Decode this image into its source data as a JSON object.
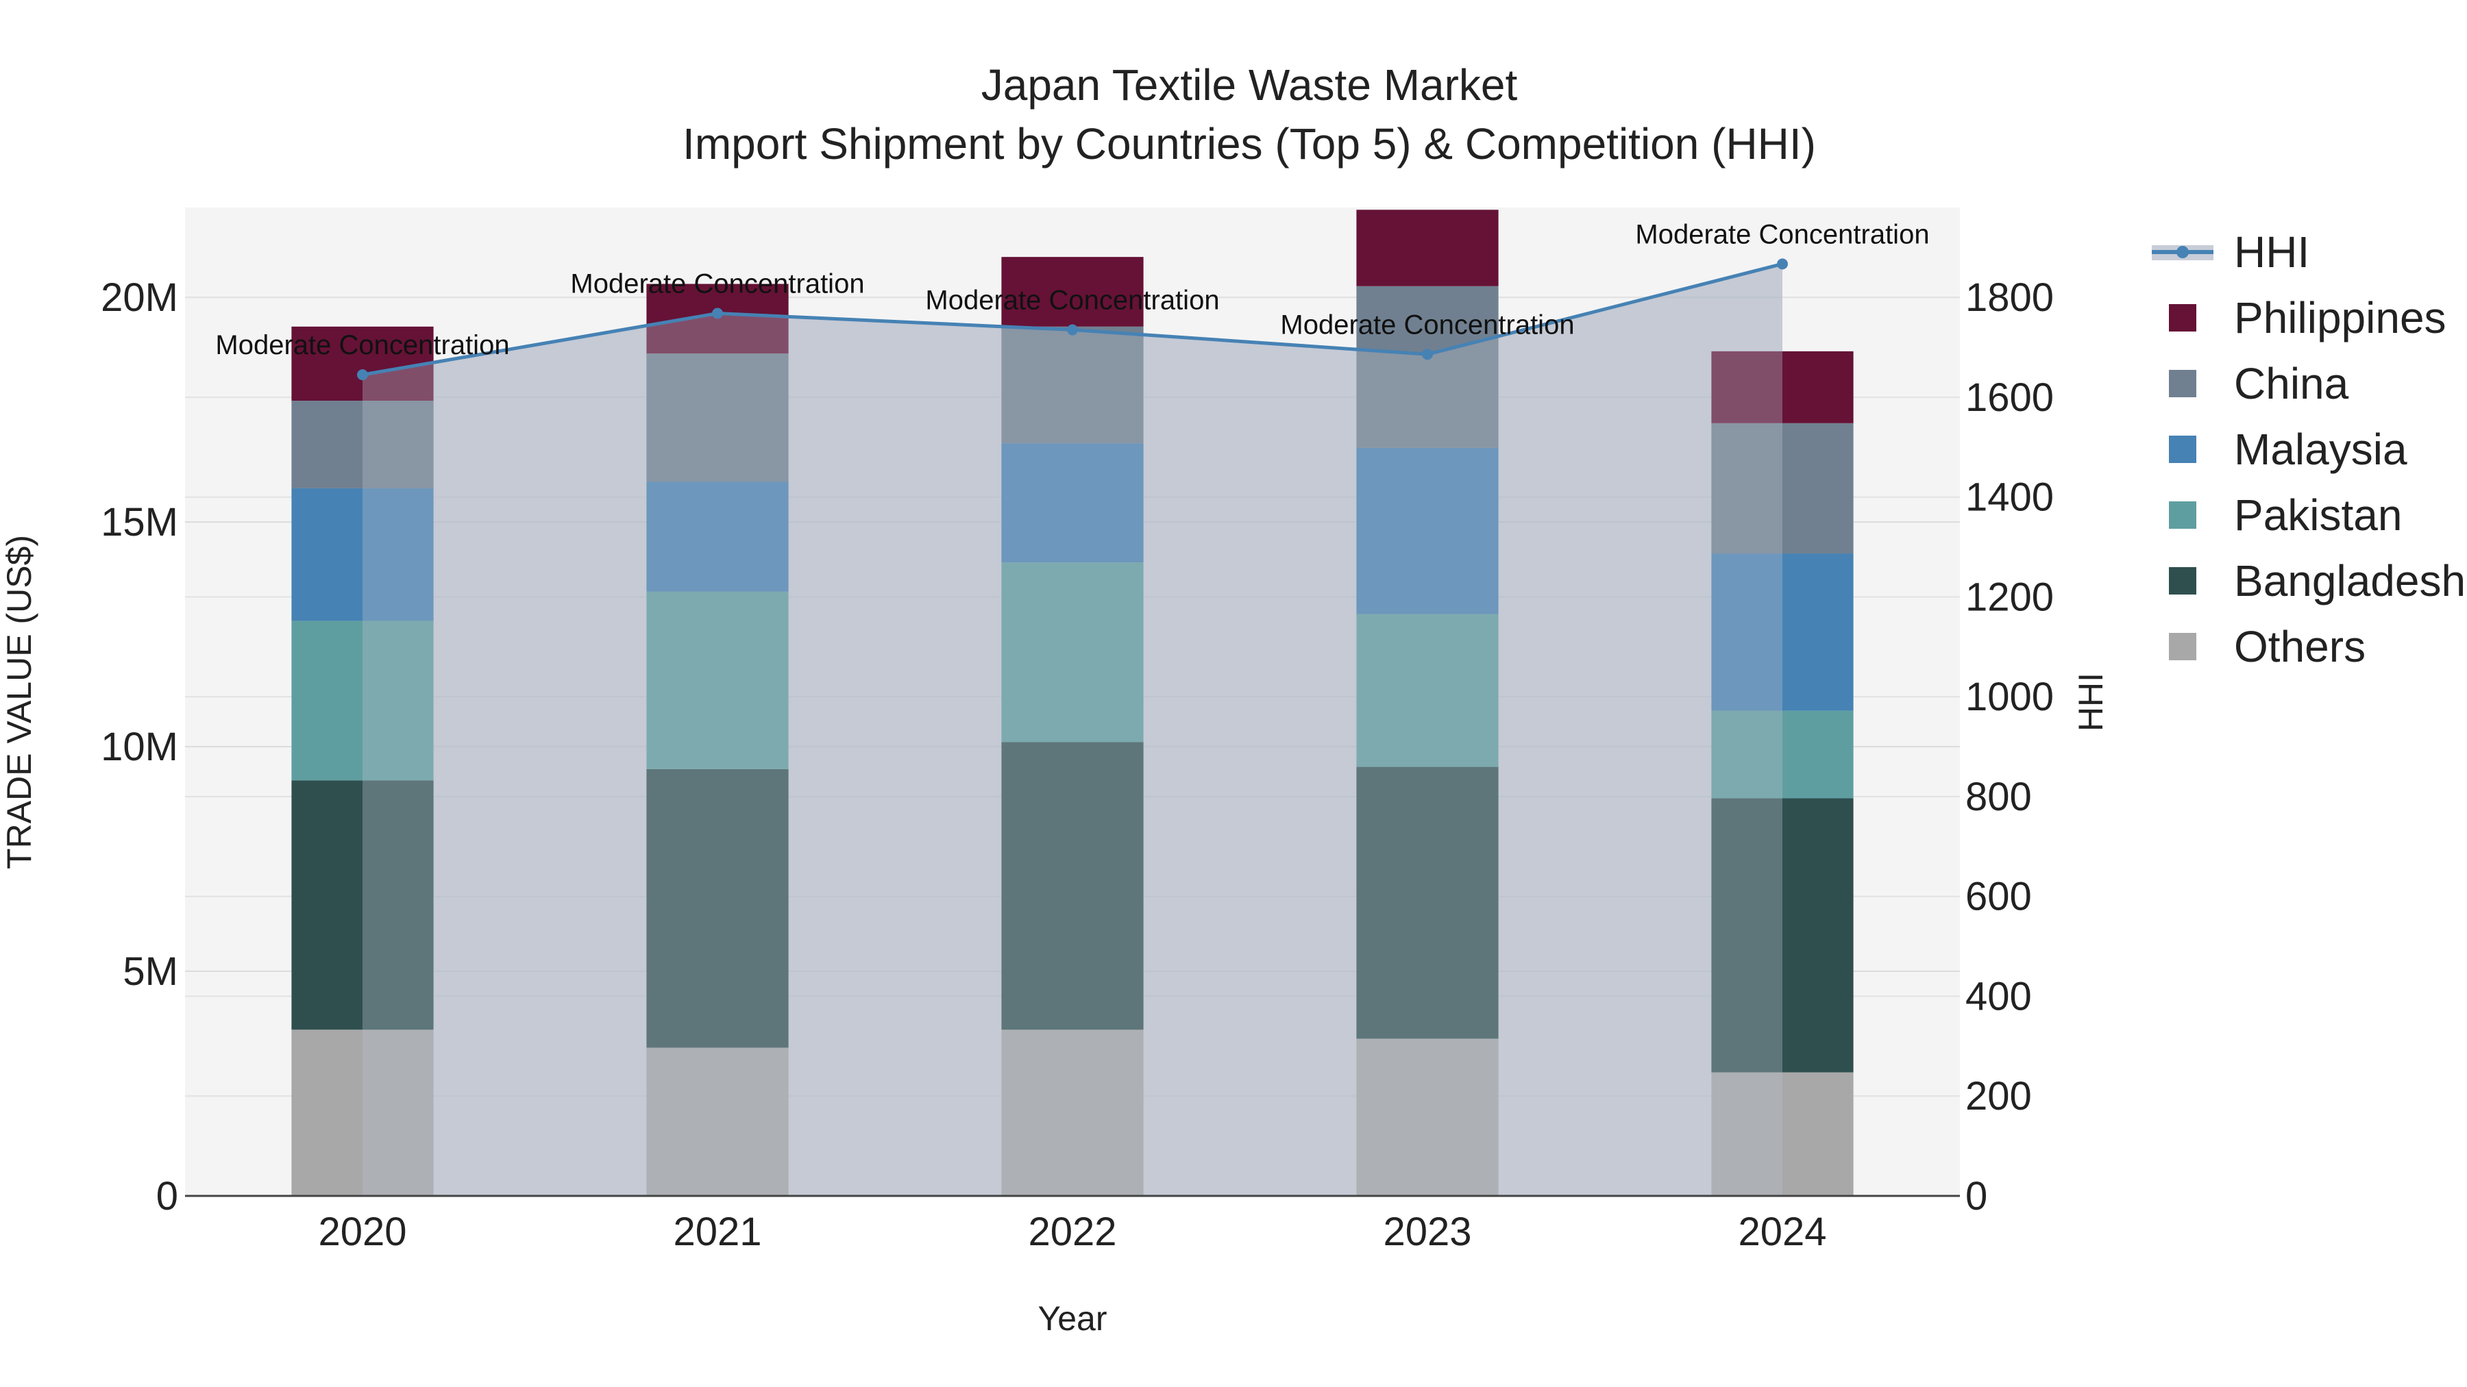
{
  "chart_data": {
    "type": "bar",
    "subtype": "stacked-bar-with-line",
    "title": "Japan Textile Waste Market",
    "subtitle": "Import Shipment by Countries (Top 5) & Competition (HHI)",
    "xlabel": "Year",
    "ylabel": "TRADE VALUE (US$)",
    "y2label": "HHI",
    "categories": [
      "2020",
      "2021",
      "2022",
      "2023",
      "2024"
    ],
    "ylim": [
      0,
      22000000
    ],
    "y_ticks": [
      0,
      5000000,
      10000000,
      15000000,
      20000000
    ],
    "y_tick_labels": [
      "0",
      "5M",
      "10M",
      "15M",
      "20M"
    ],
    "y2lim": [
      0,
      1980
    ],
    "y2_ticks": [
      0,
      200,
      400,
      600,
      800,
      1000,
      1200,
      1400,
      1600,
      1800
    ],
    "y2_tick_labels": [
      "0",
      "200",
      "400",
      "600",
      "800",
      "1000",
      "1200",
      "1400",
      "1600",
      "1800"
    ],
    "series": [
      {
        "name": "Others",
        "color": "#a8a8a8",
        "values": [
          3700000,
          3300000,
          3700000,
          3500000,
          2750000
        ]
      },
      {
        "name": "Bangladesh",
        "color": "#2f4f4f",
        "values": [
          5550000,
          6200000,
          6400000,
          6050000,
          6100000
        ]
      },
      {
        "name": "Pakistan",
        "color": "#5f9ea0",
        "values": [
          3550000,
          3950000,
          4000000,
          3400000,
          1950000
        ]
      },
      {
        "name": "Malaysia",
        "color": "#4682b4",
        "values": [
          2950000,
          2450000,
          2650000,
          3700000,
          3500000
        ]
      },
      {
        "name": "China",
        "color": "#708090",
        "values": [
          1950000,
          2850000,
          2600000,
          3600000,
          2900000
        ]
      },
      {
        "name": "Philippines",
        "color": "#651236",
        "values": [
          1650000,
          1550000,
          1550000,
          1700000,
          1600000
        ]
      }
    ],
    "hhi": {
      "name": "HHI",
      "color": "#4682b4",
      "values": [
        1645,
        1768,
        1735,
        1686,
        1867
      ],
      "annotations": [
        "Moderate Concentration",
        "Moderate Concentration",
        "Moderate Concentration",
        "Moderate Concentration",
        "Moderate Concentration"
      ]
    },
    "legend": [
      "HHI",
      "Philippines",
      "China",
      "Malaysia",
      "Pakistan",
      "Bangladesh",
      "Others"
    ],
    "legend_position": "right",
    "grid": true
  }
}
